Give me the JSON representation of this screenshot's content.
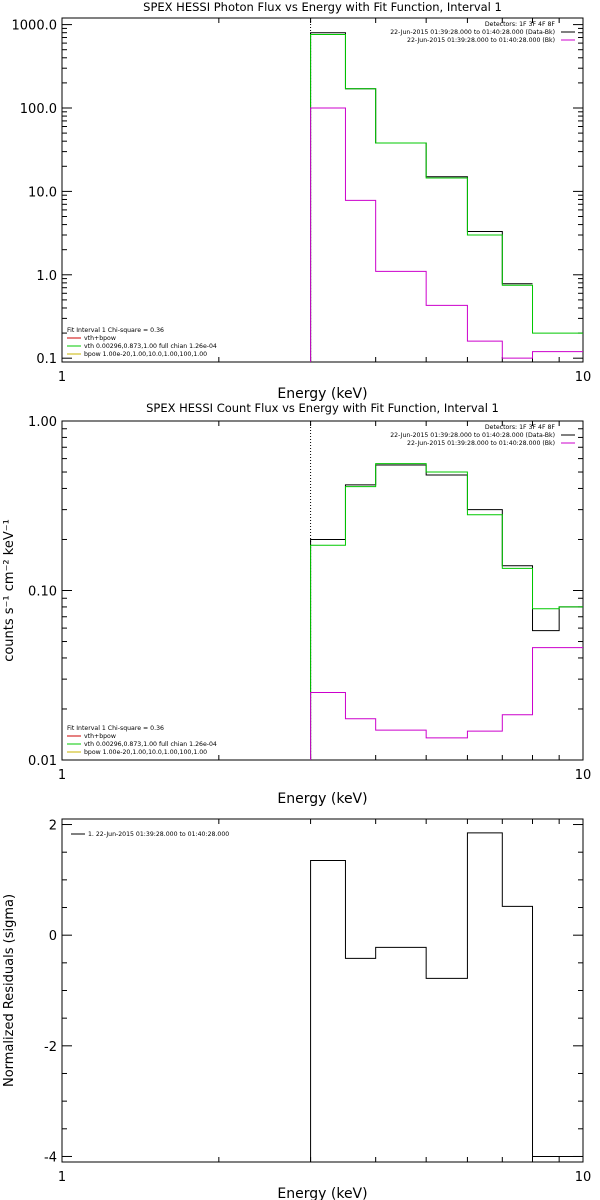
{
  "colors": {
    "data": "#000000",
    "fit_total": "#000000",
    "vth": "#00c800",
    "bk": "#cc00cc",
    "legend_vth_bspov": "#cc0000",
    "legend_bpow": "#c8b400"
  },
  "chart_data": [
    {
      "type": "line",
      "panel": "photon",
      "title": "SPEX HESSI Photon Flux vs Energy with Fit Function, Interval 1",
      "xlabel": "Energy (keV)",
      "ylabel": "",
      "xscale": "log",
      "yscale": "log",
      "xlim": [
        1,
        10
      ],
      "ylim": [
        0.09,
        1200
      ],
      "x_ticks": [
        "1",
        "10"
      ],
      "y_ticks": [
        "1000.0",
        "100.0",
        "10.0",
        "1.0",
        "0.1"
      ],
      "bin_edges": [
        3.0,
        3.5,
        4.0,
        5.0,
        6.0,
        7.0,
        8.0,
        9.0,
        10.0
      ],
      "vline_x": 3.0,
      "series": [
        {
          "color_key": "fit_total",
          "values": [
            800,
            170,
            38,
            15,
            3.3,
            0.78,
            null,
            null
          ]
        },
        {
          "color_key": "vth",
          "values": [
            760,
            170,
            38,
            14.5,
            3.0,
            0.75,
            0.2,
            0.2
          ]
        },
        {
          "color_key": "bk",
          "values": [
            100,
            7.8,
            1.1,
            0.43,
            0.16,
            0.1,
            0.12,
            0.12
          ]
        }
      ],
      "info_lines": [
        "Detectors: 1F 3F 4F 8F",
        "22-Jun-2015 01:39:28.000 to 01:40:28.000 (Data-Bk)",
        "22-Jun-2015 01:39:28.000 to 01:40:28.000 (Bk)"
      ],
      "fit_lines": [
        "Fit Interval 1   Chi-square = 0.36",
        "vth+bpow",
        "vth 0.00296,0.873,1.00  full chian 1.26e-04",
        "bpow 1.00e-20,1.00,10.0,1.00,100,1.00"
      ]
    },
    {
      "type": "line",
      "panel": "count",
      "title": "SPEX HESSI Count Flux vs Energy with Fit Function, Interval 1",
      "xlabel": "Energy (keV)",
      "ylabel": "counts s⁻¹ cm⁻² keV⁻¹",
      "xscale": "log",
      "yscale": "log",
      "xlim": [
        1,
        10
      ],
      "ylim": [
        0.01,
        1.0
      ],
      "x_ticks": [
        "1",
        "10"
      ],
      "y_ticks": [
        "1.00",
        "0.10",
        "0.01"
      ],
      "bin_edges": [
        3.0,
        3.5,
        4.0,
        5.0,
        6.0,
        7.0,
        8.0,
        9.0,
        10.0
      ],
      "vline_x": 3.0,
      "series": [
        {
          "color_key": "data",
          "values": [
            0.2,
            0.42,
            0.55,
            0.48,
            0.3,
            0.14,
            0.058,
            0.08
          ]
        },
        {
          "color_key": "vth",
          "values": [
            0.185,
            0.41,
            0.56,
            0.5,
            0.28,
            0.135,
            0.078,
            0.08
          ]
        },
        {
          "color_key": "bk",
          "values": [
            0.025,
            0.0175,
            0.015,
            0.0135,
            0.0148,
            0.0185,
            0.046,
            0.046
          ]
        }
      ],
      "info_lines": [
        "Detectors: 1F 3F 4F 8F",
        "22-Jun-2015 01:39:28.000 to 01:40:28.000 (Data-Bk)",
        "22-Jun-2015 01:39:28.000 to 01:40:28.000 (Bk)"
      ],
      "fit_lines": [
        "Fit Interval 1   Chi-square = 0.36",
        "vth+bpow",
        "vth 0.00296,0.873,1.00  full chian 1.26e-04",
        "bpow 1.00e-20,1.00,10.0,1.00,100,1.00"
      ]
    },
    {
      "type": "line",
      "panel": "residuals",
      "title": "",
      "xlabel": "Energy (keV)",
      "ylabel": "Normalized Residuals (sigma)",
      "xscale": "log",
      "yscale": "linear",
      "xlim": [
        1,
        10
      ],
      "ylim": [
        -4.1,
        2.1
      ],
      "x_ticks": [
        "1",
        "10"
      ],
      "y_ticks": [
        "2",
        "0",
        "-2",
        "-4"
      ],
      "bin_edges": [
        3.0,
        3.5,
        4.0,
        5.0,
        6.0,
        7.0,
        8.0,
        9.0,
        10.0
      ],
      "series": [
        {
          "color_key": "data",
          "values": [
            1.35,
            -0.42,
            -0.22,
            -0.78,
            1.85,
            0.52,
            -4.0,
            -4.0
          ]
        }
      ],
      "legend": "1. 22-Jun-2015 01:39:28.000 to 01:40:28.000"
    }
  ]
}
